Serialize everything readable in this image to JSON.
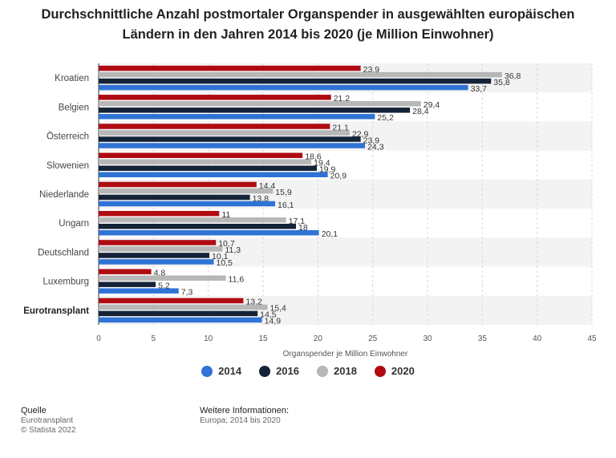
{
  "title_line1": "Durchschnittliche Anzahl postmortaler Organspender in ausgewählten europäischen",
  "title_line2": "Ländern in den Jahren 2014 bis 2020 (je Million Einwohner)",
  "chart_data": {
    "type": "bar",
    "orientation": "horizontal",
    "categories": [
      "Kroatien",
      "Belgien",
      "Österreich",
      "Slowenien",
      "Niederlande",
      "Ungarn",
      "Deutschland",
      "Luxemburg",
      "Eurotransplant"
    ],
    "bold_categories": [
      "Eurotransplant"
    ],
    "series": [
      {
        "name": "2020",
        "color": "#b00b12",
        "values": [
          23.9,
          21.2,
          21.1,
          18.6,
          14.4,
          11,
          10.7,
          4.8,
          13.2
        ],
        "labels": [
          "23,9",
          "21,2",
          "21,1",
          "18,6",
          "14,4",
          "11",
          "10,7",
          "4,8",
          "13,2"
        ]
      },
      {
        "name": "2018",
        "color": "#b7b7b7",
        "values": [
          36.8,
          29.4,
          22.9,
          19.4,
          15.9,
          17.1,
          11.3,
          11.6,
          15.4
        ],
        "labels": [
          "36,8",
          "29,4",
          "22,9",
          "19,4",
          "15,9",
          "17,1",
          "11,3",
          "11,6",
          "15,4"
        ]
      },
      {
        "name": "2016",
        "color": "#152338",
        "values": [
          35.8,
          28.4,
          23.9,
          19.9,
          13.8,
          18,
          10.1,
          5.2,
          14.5
        ],
        "labels": [
          "35,8",
          "28,4",
          "23,9",
          "19,9",
          "13,8",
          "18",
          "10,1",
          "5,2",
          "14,5"
        ]
      },
      {
        "name": "2014",
        "color": "#2f73d5",
        "values": [
          33.7,
          25.2,
          24.3,
          20.9,
          16.1,
          20.1,
          10.5,
          7.3,
          14.9
        ],
        "labels": [
          "33,7",
          "25,2",
          "24,3",
          "20,9",
          "16,1",
          "20,1",
          "10,5",
          "7,3",
          "14,9"
        ]
      }
    ],
    "xlim": [
      0,
      45
    ],
    "xticks": [
      0,
      5,
      10,
      15,
      20,
      25,
      30,
      35,
      40,
      45
    ],
    "xlabel": "Organspender je Million Einwohner",
    "grid": true,
    "legend_position": "bottom"
  },
  "legend": [
    {
      "label": "2014",
      "color": "#2f73d5"
    },
    {
      "label": "2016",
      "color": "#152338"
    },
    {
      "label": "2018",
      "color": "#b7b7b7"
    },
    {
      "label": "2020",
      "color": "#b00b12"
    }
  ],
  "footer": {
    "source_heading": "Quelle",
    "source_line1": "Eurotransplant",
    "source_line2": "© Statista 2022",
    "info_heading": "Weitere Informationen:",
    "info_line1": "Europa; 2014 bis 2020"
  }
}
